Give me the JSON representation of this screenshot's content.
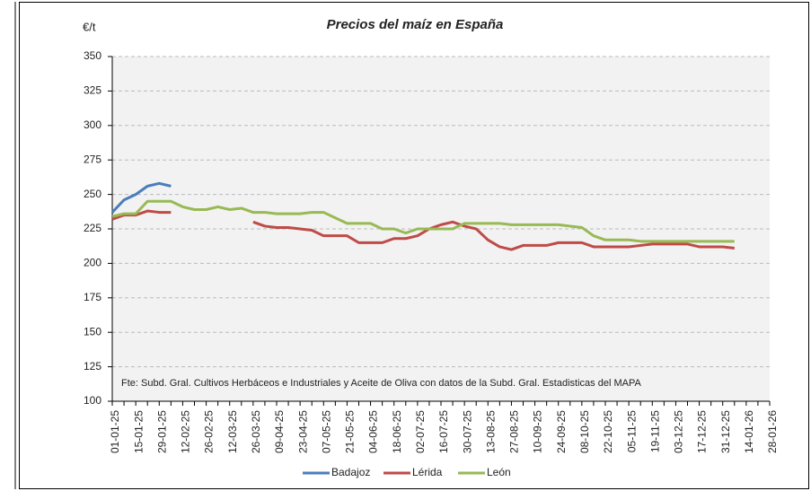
{
  "chart_data": {
    "type": "line",
    "title": "Precios del maíz en España",
    "y_label": "€/t",
    "note": "Fte: Subd. Gral. Cultivos Herbáceos e Industriales y Aceite de Oliva con datos de la Subd. Gral. Estadisticas del MAPA",
    "categories": [
      "01-01-25",
      null,
      "15-01-25",
      null,
      "29-01-25",
      null,
      "12-02-25",
      null,
      "26-02-25",
      null,
      "12-03-25",
      null,
      "26-03-25",
      null,
      "09-04-25",
      null,
      "23-04-25",
      null,
      "07-05-25",
      null,
      "21-05-25",
      null,
      "04-06-25",
      null,
      "18-06-25",
      null,
      "02-07-25",
      null,
      "16-07-25",
      null,
      "30-07-25",
      null,
      "13-08-25",
      null,
      "27-08-25",
      null,
      "10-09-25",
      null,
      "24-09-25",
      null,
      "08-10-25",
      null,
      "22-10-25",
      null,
      "05-11-25",
      null,
      "19-11-25",
      null,
      "03-12-25",
      null,
      "17-12-25",
      null,
      "31-12-25",
      null,
      "14-01-26",
      null,
      "28-01-26"
    ],
    "series": [
      {
        "name": "Badajoz",
        "color": "#4a7ebb",
        "values": [
          237,
          246,
          250,
          256,
          258,
          256,
          null,
          null,
          null,
          null,
          null,
          null,
          null,
          null,
          null,
          null,
          null,
          null,
          null,
          null,
          null,
          null,
          null,
          null,
          null,
          null,
          null,
          null,
          null,
          null,
          null,
          null,
          null,
          null,
          null,
          null,
          null,
          null,
          null,
          null,
          null,
          null,
          null,
          null,
          null,
          null,
          null,
          null,
          null,
          null,
          null,
          null,
          null,
          null,
          null,
          null,
          null
        ]
      },
      {
        "name": "Lérida",
        "color": "#be4b48",
        "values": [
          232,
          235,
          235,
          238,
          237,
          237,
          null,
          null,
          null,
          null,
          null,
          null,
          230,
          227,
          226,
          226,
          225,
          224,
          220,
          220,
          220,
          215,
          215,
          215,
          218,
          218,
          220,
          225,
          228,
          230,
          227,
          225,
          217,
          212,
          210,
          213,
          213,
          213,
          215,
          215,
          215,
          212,
          212,
          212,
          212,
          213,
          214,
          214,
          214,
          214,
          212,
          212,
          212,
          211,
          null,
          null,
          null
        ]
      },
      {
        "name": "León",
        "color": "#98b954",
        "values": [
          234,
          236,
          236,
          245,
          245,
          245,
          241,
          239,
          239,
          241,
          239,
          240,
          237,
          237,
          236,
          236,
          236,
          237,
          237,
          233,
          229,
          229,
          229,
          225,
          225,
          222,
          225,
          225,
          225,
          225,
          229,
          229,
          229,
          229,
          228,
          228,
          228,
          228,
          228,
          227,
          226,
          220,
          217,
          217,
          217,
          216,
          216,
          216,
          216,
          216,
          216,
          216,
          216,
          216,
          null,
          null,
          null
        ]
      }
    ],
    "ylim": [
      100,
      350
    ],
    "yticks": [
      100,
      125,
      150,
      175,
      200,
      225,
      250,
      275,
      300,
      325,
      350
    ],
    "grid": true,
    "legend": "bottom"
  }
}
